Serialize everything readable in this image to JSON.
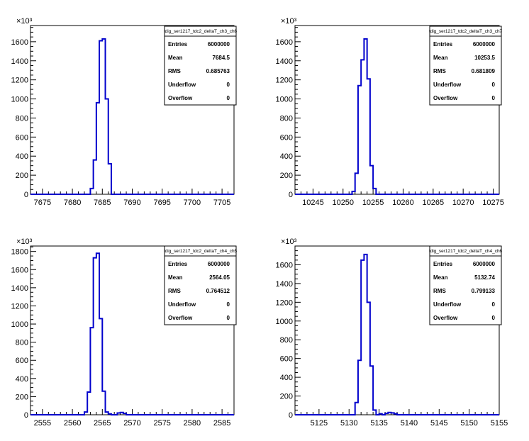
{
  "chart_data": [
    {
      "type": "histogram",
      "name": "tdig_ser1217_tdc2_deltaT_ch3_ch6",
      "multiplier": "×10³",
      "xlim": [
        7673,
        7707
      ],
      "ylim": [
        0,
        1770
      ],
      "x_ticks": [
        7675,
        7680,
        7685,
        7690,
        7695,
        7700,
        7705
      ],
      "y_ticks": [
        0,
        200,
        400,
        600,
        800,
        1000,
        1200,
        1400,
        1600
      ],
      "bin_width": 0.5,
      "bins": [
        {
          "x": 7683.0,
          "y": 60
        },
        {
          "x": 7683.5,
          "y": 360
        },
        {
          "x": 7684.0,
          "y": 960
        },
        {
          "x": 7684.5,
          "y": 1610
        },
        {
          "x": 7685.0,
          "y": 1630
        },
        {
          "x": 7685.5,
          "y": 1000
        },
        {
          "x": 7686.0,
          "y": 320
        }
      ],
      "stats": {
        "labels": [
          "Entries",
          "Mean",
          "RMS",
          "Underflow",
          "Overflow"
        ],
        "values": [
          "6000000",
          "7684.5",
          "0.685763",
          "0",
          "0"
        ]
      }
    },
    {
      "type": "histogram",
      "name": "tdig_ser1217_tdc2_deltaT_ch3_ch7",
      "multiplier": "×10³",
      "xlim": [
        10242,
        10276
      ],
      "ylim": [
        0,
        1770
      ],
      "x_ticks": [
        10245,
        10250,
        10255,
        10260,
        10265,
        10270,
        10275
      ],
      "y_ticks": [
        0,
        200,
        400,
        600,
        800,
        1000,
        1200,
        1400,
        1600
      ],
      "bin_width": 0.5,
      "bins": [
        {
          "x": 10251.5,
          "y": 30
        },
        {
          "x": 10252.0,
          "y": 220
        },
        {
          "x": 10252.5,
          "y": 1140
        },
        {
          "x": 10253.0,
          "y": 1410
        },
        {
          "x": 10253.5,
          "y": 1630
        },
        {
          "x": 10254.0,
          "y": 1210
        },
        {
          "x": 10254.5,
          "y": 300
        },
        {
          "x": 10255.0,
          "y": 60
        }
      ],
      "stats": {
        "labels": [
          "Entries",
          "Mean",
          "RMS",
          "Underflow",
          "Overflow"
        ],
        "values": [
          "6000000",
          "10253.5",
          "0.681809",
          "0",
          "0"
        ]
      }
    },
    {
      "type": "histogram",
      "name": "tdig_ser1217_tdc2_deltaT_ch4_ch5",
      "multiplier": "×10³",
      "xlim": [
        2553,
        2587
      ],
      "ylim": [
        0,
        1860
      ],
      "x_ticks": [
        2555,
        2560,
        2565,
        2570,
        2575,
        2580,
        2585
      ],
      "y_ticks": [
        0,
        200,
        400,
        600,
        800,
        1000,
        1200,
        1400,
        1600,
        1800
      ],
      "bin_width": 0.5,
      "bins": [
        {
          "x": 2562.0,
          "y": 30
        },
        {
          "x": 2562.5,
          "y": 250
        },
        {
          "x": 2563.0,
          "y": 960
        },
        {
          "x": 2563.5,
          "y": 1730
        },
        {
          "x": 2564.0,
          "y": 1780
        },
        {
          "x": 2564.5,
          "y": 1060
        },
        {
          "x": 2565.0,
          "y": 260
        },
        {
          "x": 2565.5,
          "y": 30
        },
        {
          "x": 2566.0,
          "y": 10
        },
        {
          "x": 2567.5,
          "y": 20
        },
        {
          "x": 2568.0,
          "y": 25
        },
        {
          "x": 2568.5,
          "y": 15
        }
      ],
      "stats": {
        "labels": [
          "Entries",
          "Mean",
          "RMS",
          "Underflow",
          "Overflow"
        ],
        "values": [
          "6000000",
          "2564.05",
          "0.764512",
          "0",
          "0"
        ]
      }
    },
    {
      "type": "histogram",
      "name": "tdig_ser1217_tdc2_deltaT_ch4_ch6",
      "multiplier": "×10³",
      "xlim": [
        5121,
        5155
      ],
      "ylim": [
        0,
        1800
      ],
      "x_ticks": [
        5125,
        5130,
        5135,
        5140,
        5145,
        5150,
        5155
      ],
      "y_ticks": [
        0,
        200,
        400,
        600,
        800,
        1000,
        1200,
        1400,
        1600
      ],
      "bin_width": 0.5,
      "bins": [
        {
          "x": 5131.0,
          "y": 130
        },
        {
          "x": 5131.5,
          "y": 580
        },
        {
          "x": 5132.0,
          "y": 1650
        },
        {
          "x": 5132.5,
          "y": 1710
        },
        {
          "x": 5133.0,
          "y": 1200
        },
        {
          "x": 5133.5,
          "y": 520
        },
        {
          "x": 5134.0,
          "y": 50
        },
        {
          "x": 5135.0,
          "y": 10
        },
        {
          "x": 5136.0,
          "y": 15
        },
        {
          "x": 5136.5,
          "y": 25
        },
        {
          "x": 5137.0,
          "y": 20
        },
        {
          "x": 5137.5,
          "y": 10
        }
      ],
      "stats": {
        "labels": [
          "Entries",
          "Mean",
          "RMS",
          "Underflow",
          "Overflow"
        ],
        "values": [
          "6000000",
          "5132.74",
          "0.799133",
          "0",
          "0"
        ]
      }
    }
  ],
  "colors": {
    "histogram_line": "#0000cc",
    "axis": "#000000",
    "background": "#ffffff"
  }
}
